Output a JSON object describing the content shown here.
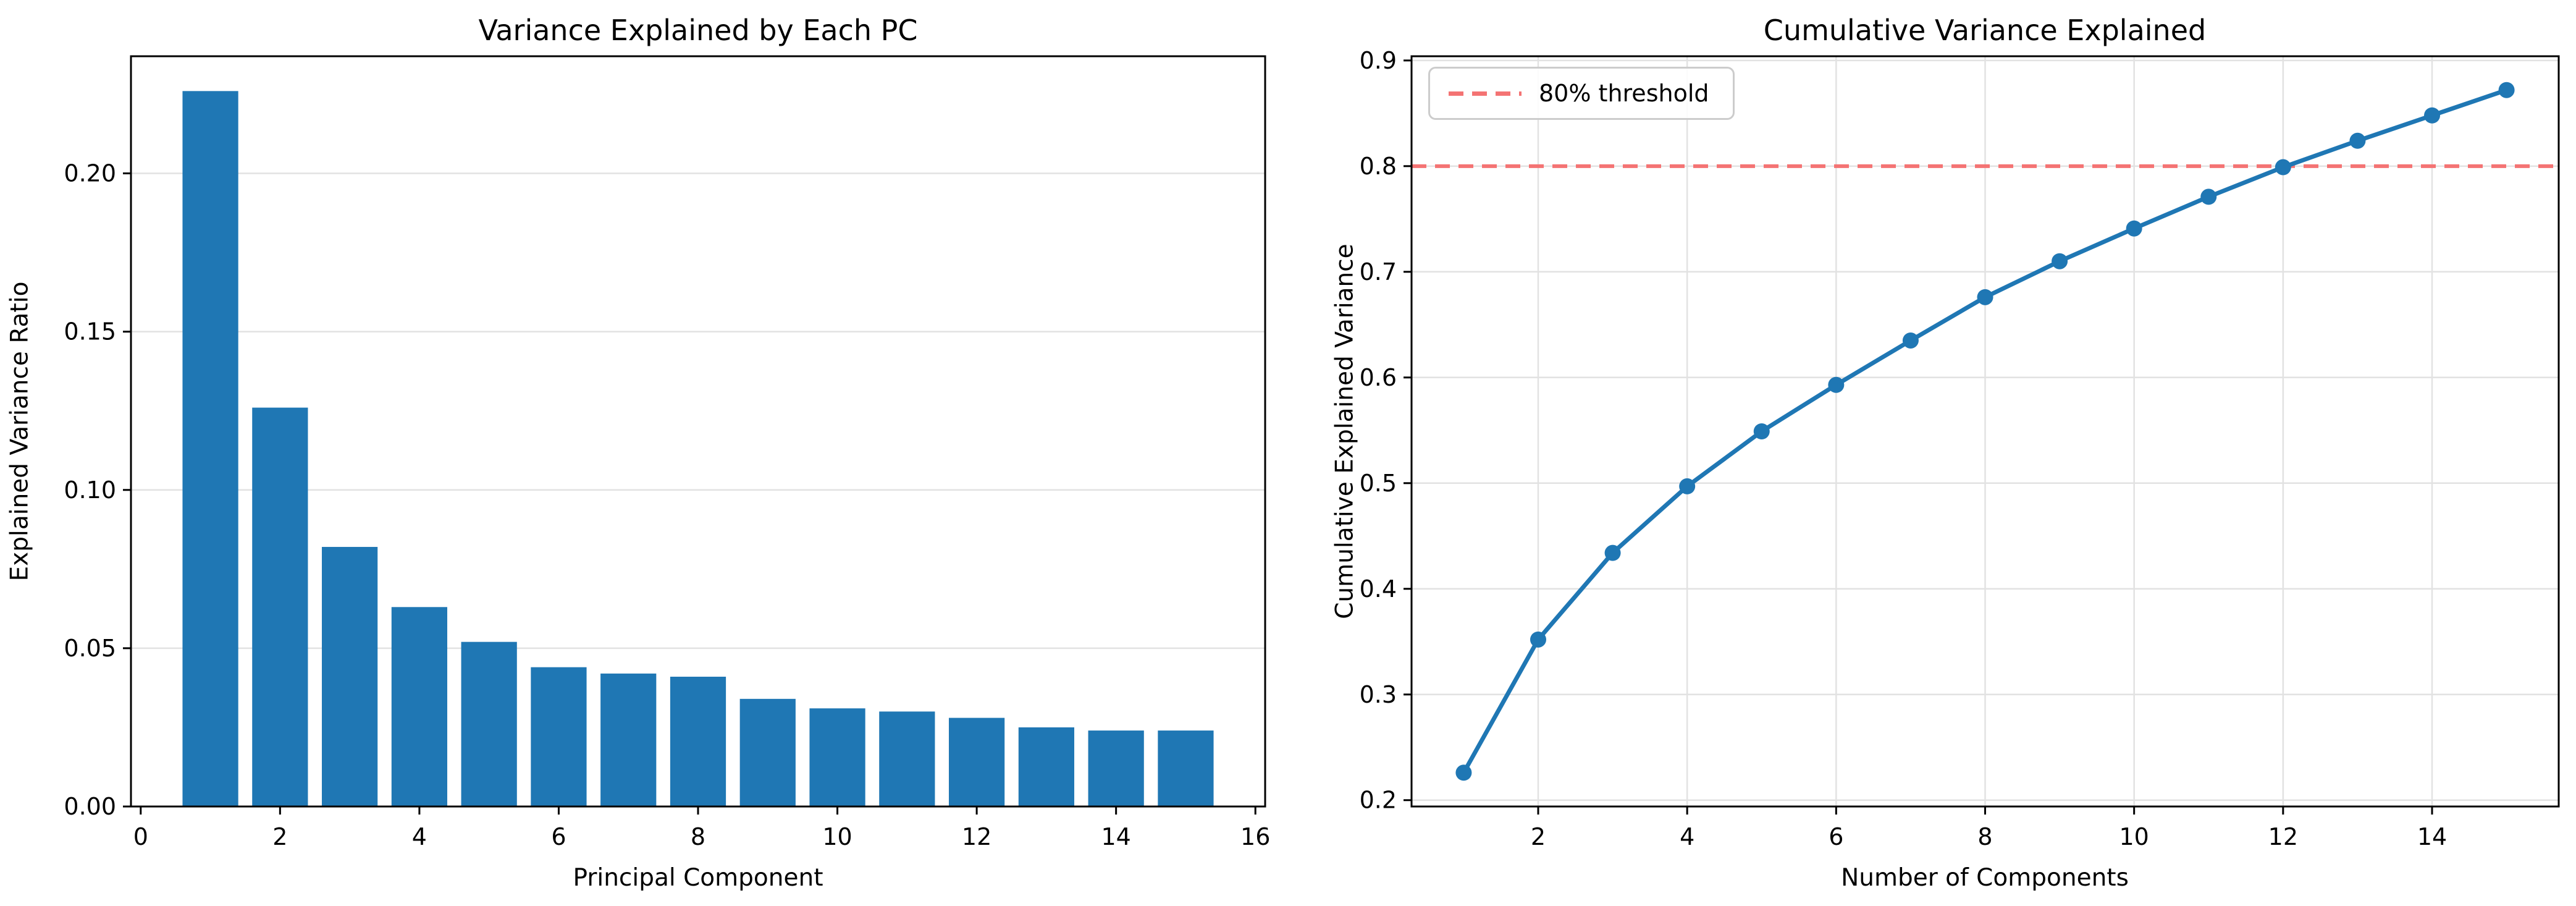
{
  "figure": {
    "background": "#ffffff",
    "accent_blue": "#1f77b4",
    "threshold_red": "#f47373",
    "grid_color": "#e2e2e2",
    "spine_color": "#000000"
  },
  "chart_data": [
    {
      "type": "bar",
      "title": "Variance Explained by Each PC",
      "xlabel": "Principal Component",
      "ylabel": "Explained Variance Ratio",
      "categories": [
        1,
        2,
        3,
        4,
        5,
        6,
        7,
        8,
        9,
        10,
        11,
        12,
        13,
        14,
        15
      ],
      "values": [
        0.226,
        0.126,
        0.082,
        0.063,
        0.052,
        0.044,
        0.042,
        0.041,
        0.034,
        0.031,
        0.03,
        0.028,
        0.025,
        0.024,
        0.024
      ],
      "bar_color": "#1f77b4",
      "bar_width": 0.8,
      "xlim": [
        -0.14,
        16.14
      ],
      "ylim": [
        0,
        0.237
      ],
      "xticks": {
        "values": [
          0,
          2,
          4,
          6,
          8,
          10,
          12,
          14,
          16
        ],
        "labels": [
          "0",
          "2",
          "4",
          "6",
          "8",
          "10",
          "12",
          "14",
          "16"
        ]
      },
      "yticks": {
        "values": [
          0.0,
          0.05,
          0.1,
          0.15,
          0.2
        ],
        "labels": [
          "0.00",
          "0.05",
          "0.10",
          "0.15",
          "0.20"
        ]
      },
      "grid": "y"
    },
    {
      "type": "line",
      "title": "Cumulative Variance Explained",
      "xlabel": "Number of Components",
      "ylabel": "Cumulative Explained Variance",
      "x": [
        1,
        2,
        3,
        4,
        5,
        6,
        7,
        8,
        9,
        10,
        11,
        12,
        13,
        14,
        15
      ],
      "values": [
        0.226,
        0.352,
        0.434,
        0.497,
        0.549,
        0.593,
        0.635,
        0.676,
        0.71,
        0.741,
        0.771,
        0.799,
        0.824,
        0.848,
        0.872
      ],
      "line_color": "#1f77b4",
      "marker": "circle",
      "xlim": [
        0.3,
        15.7
      ],
      "ylim": [
        0.194,
        0.904
      ],
      "xticks": {
        "values": [
          2,
          4,
          6,
          8,
          10,
          12,
          14
        ],
        "labels": [
          "2",
          "4",
          "6",
          "8",
          "10",
          "12",
          "14"
        ]
      },
      "yticks": {
        "values": [
          0.2,
          0.3,
          0.4,
          0.5,
          0.6,
          0.7,
          0.8,
          0.9
        ],
        "labels": [
          "0.2",
          "0.3",
          "0.4",
          "0.5",
          "0.6",
          "0.7",
          "0.8",
          "0.9"
        ]
      },
      "grid": "both",
      "threshold": {
        "y": 0.8,
        "color": "#f47373",
        "style": "dashed"
      },
      "legend_label": "80% threshold",
      "legend_position": "upper left"
    }
  ]
}
